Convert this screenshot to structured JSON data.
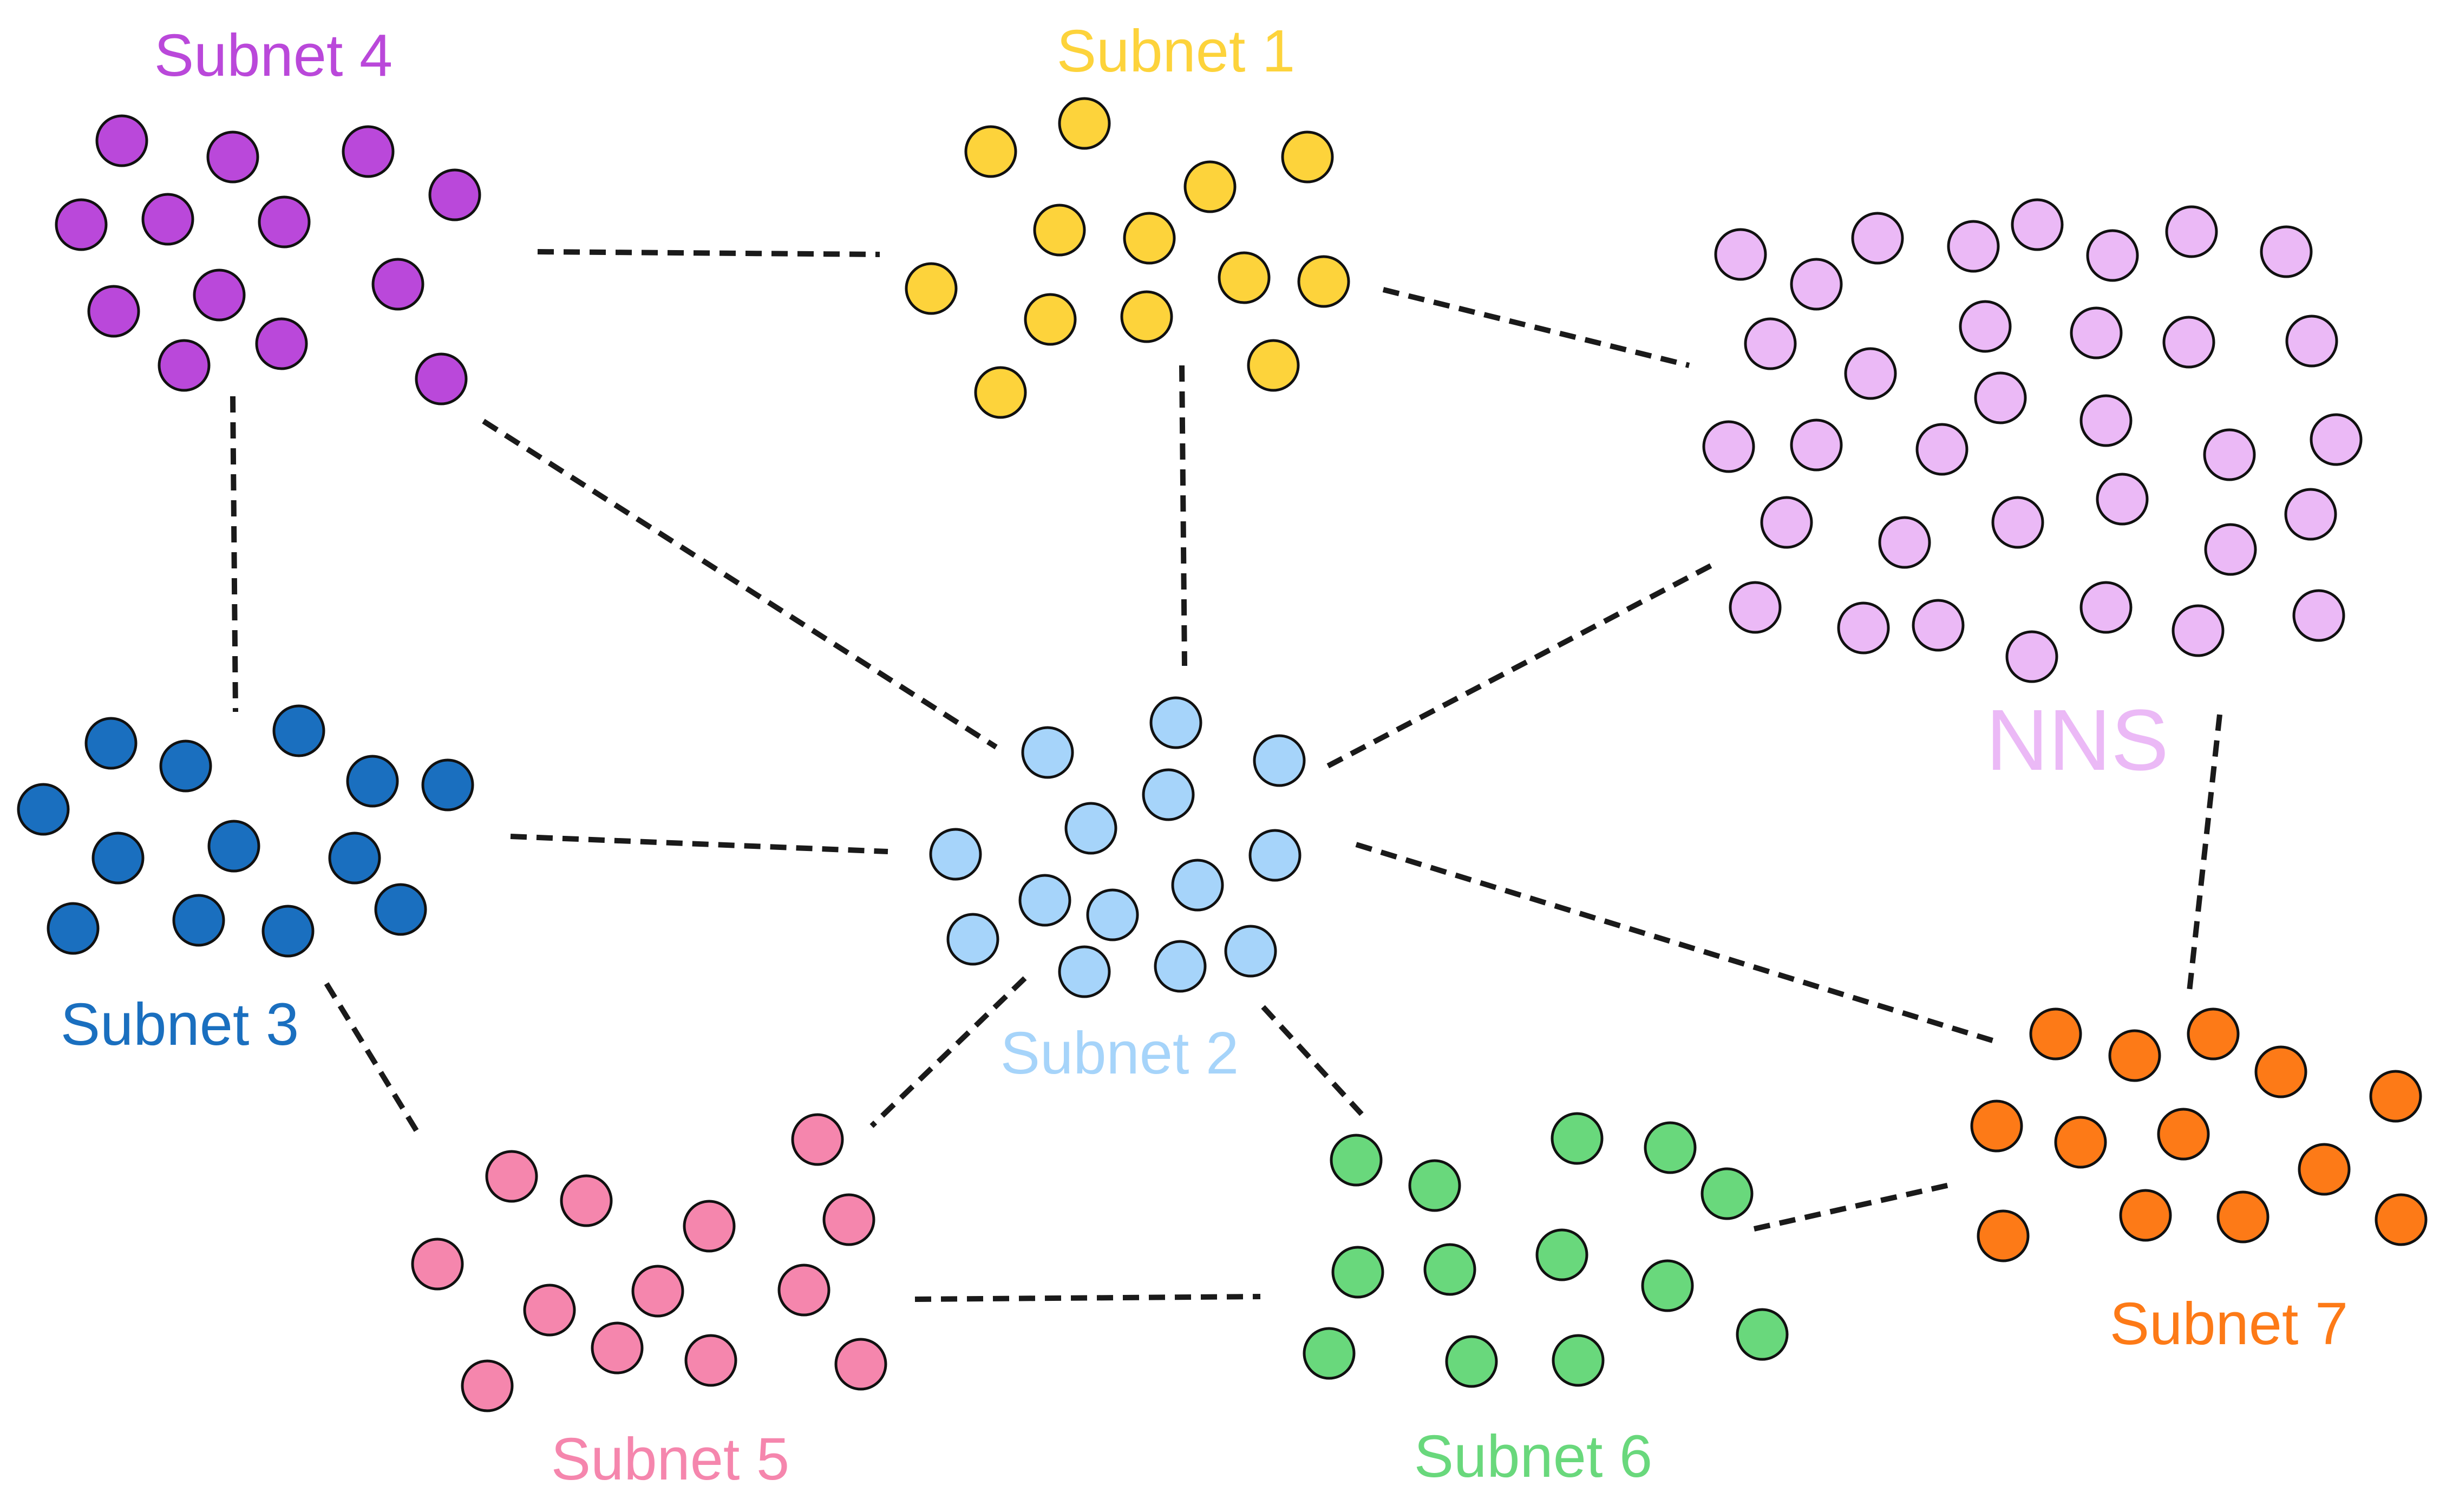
{
  "subnets": [
    {
      "id": "subnet-1",
      "label": "Subnet 1",
      "color": "#FDD33B"
    },
    {
      "id": "subnet-2",
      "label": "Subnet 2",
      "color": "#A6D4FA"
    },
    {
      "id": "subnet-3",
      "label": "Subnet 3",
      "color": "#1A6FBF"
    },
    {
      "id": "subnet-4",
      "label": "Subnet 4",
      "color": "#BA48DA"
    },
    {
      "id": "subnet-5",
      "label": "Subnet 5",
      "color": "#F586AD"
    },
    {
      "id": "subnet-6",
      "label": "Subnet 6",
      "color": "#69D87C"
    },
    {
      "id": "subnet-7",
      "label": "Subnet 7",
      "color": "#FD7A17"
    },
    {
      "id": "nns",
      "label": "NNS",
      "color": "#EBB9F6"
    }
  ],
  "node_counts": {
    "subnet-1": 14,
    "subnet-2": 16,
    "subnet-3": 15,
    "subnet-4": 14,
    "subnet-5": 14,
    "subnet-6": 14,
    "subnet-7": 13,
    "nns": 40
  },
  "connections": [
    [
      "subnet-4",
      "subnet-1"
    ],
    [
      "subnet-1",
      "nns"
    ],
    [
      "subnet-4",
      "subnet-3"
    ],
    [
      "subnet-4",
      "subnet-2"
    ],
    [
      "subnet-1",
      "subnet-2"
    ],
    [
      "nns",
      "subnet-2"
    ],
    [
      "nns",
      "subnet-7"
    ],
    [
      "subnet-3",
      "subnet-2"
    ],
    [
      "subnet-3",
      "subnet-5"
    ],
    [
      "subnet-2",
      "subnet-5"
    ],
    [
      "subnet-2",
      "subnet-6"
    ],
    [
      "subnet-2",
      "subnet-7"
    ],
    [
      "subnet-5",
      "subnet-6"
    ],
    [
      "subnet-6",
      "subnet-7"
    ]
  ]
}
